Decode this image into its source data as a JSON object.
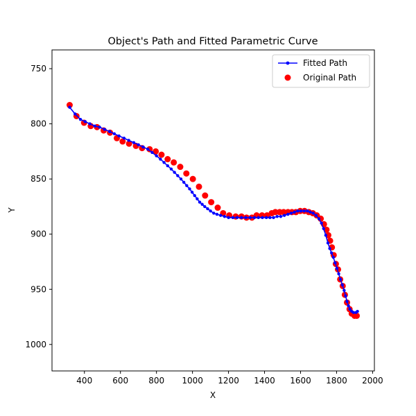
{
  "chart_data": {
    "type": "scatter",
    "title": "Object's Path and Fitted Parametric Curve",
    "xlabel": "X",
    "ylabel": "Y",
    "xlim": [
      220,
      2010
    ],
    "ylim": [
      1024,
      733
    ],
    "y_inverted": true,
    "grid": false,
    "legend_position": "top-right",
    "xticks": [
      400,
      600,
      800,
      1000,
      1200,
      1400,
      1600,
      1800,
      2000
    ],
    "yticks": [
      750,
      800,
      850,
      900,
      950,
      1000
    ],
    "series": [
      {
        "name": "Fitted Path",
        "kind": "line",
        "color": "#0000ff",
        "marker": "point",
        "points": [
          [
            318,
            785
          ],
          [
            348,
            791
          ],
          [
            378,
            796
          ],
          [
            404,
            798
          ],
          [
            430,
            800
          ],
          [
            458,
            802
          ],
          [
            484,
            803
          ],
          [
            512,
            805
          ],
          [
            540,
            807
          ],
          [
            566,
            809
          ],
          [
            592,
            811
          ],
          [
            620,
            813
          ],
          [
            646,
            815
          ],
          [
            674,
            817
          ],
          [
            700,
            819
          ],
          [
            726,
            821
          ],
          [
            752,
            823
          ],
          [
            776,
            826
          ],
          [
            800,
            829
          ],
          [
            822,
            832
          ],
          [
            842,
            835
          ],
          [
            862,
            838
          ],
          [
            882,
            841
          ],
          [
            900,
            844
          ],
          [
            918,
            847
          ],
          [
            936,
            850
          ],
          [
            952,
            853
          ],
          [
            968,
            856
          ],
          [
            984,
            859
          ],
          [
            998,
            862
          ],
          [
            1012,
            865
          ],
          [
            1026,
            868
          ],
          [
            1040,
            871
          ],
          [
            1054,
            873
          ],
          [
            1068,
            875
          ],
          [
            1084,
            877
          ],
          [
            1100,
            879
          ],
          [
            1118,
            881
          ],
          [
            1136,
            882
          ],
          [
            1156,
            883
          ],
          [
            1178,
            884
          ],
          [
            1200,
            885
          ],
          [
            1224,
            885
          ],
          [
            1248,
            885
          ],
          [
            1272,
            885
          ],
          [
            1296,
            885
          ],
          [
            1320,
            885
          ],
          [
            1344,
            885
          ],
          [
            1366,
            885
          ],
          [
            1388,
            885
          ],
          [
            1410,
            885
          ],
          [
            1430,
            885
          ],
          [
            1450,
            885
          ],
          [
            1470,
            884
          ],
          [
            1490,
            884
          ],
          [
            1510,
            883
          ],
          [
            1530,
            882
          ],
          [
            1548,
            881
          ],
          [
            1566,
            880
          ],
          [
            1584,
            879
          ],
          [
            1602,
            879
          ],
          [
            1620,
            879
          ],
          [
            1638,
            879
          ],
          [
            1654,
            880
          ],
          [
            1670,
            881
          ],
          [
            1686,
            883
          ],
          [
            1702,
            886
          ],
          [
            1716,
            890
          ],
          [
            1728,
            895
          ],
          [
            1740,
            901
          ],
          [
            1752,
            908
          ],
          [
            1762,
            913
          ],
          [
            1772,
            917
          ],
          [
            1782,
            921
          ],
          [
            1792,
            926
          ],
          [
            1802,
            931
          ],
          [
            1812,
            936
          ],
          [
            1822,
            941
          ],
          [
            1832,
            946
          ],
          [
            1842,
            951
          ],
          [
            1850,
            956
          ],
          [
            1858,
            961
          ],
          [
            1866,
            965
          ],
          [
            1874,
            968
          ],
          [
            1884,
            970
          ],
          [
            1894,
            971
          ],
          [
            1908,
            971
          ],
          [
            1916,
            970
          ]
        ]
      },
      {
        "name": "Original Path",
        "kind": "scatter",
        "color": "#ff0000",
        "marker": "circle",
        "points": [
          [
            318,
            783
          ],
          [
            356,
            793
          ],
          [
            398,
            799
          ],
          [
            435,
            802
          ],
          [
            470,
            803
          ],
          [
            507,
            806
          ],
          [
            542,
            808
          ],
          [
            580,
            813
          ],
          [
            612,
            816
          ],
          [
            648,
            818
          ],
          [
            686,
            820
          ],
          [
            720,
            822
          ],
          [
            762,
            823
          ],
          [
            796,
            825
          ],
          [
            828,
            828
          ],
          [
            862,
            832
          ],
          [
            896,
            835
          ],
          [
            932,
            839
          ],
          [
            966,
            845
          ],
          [
            1002,
            850
          ],
          [
            1036,
            857
          ],
          [
            1070,
            865
          ],
          [
            1104,
            871
          ],
          [
            1140,
            876
          ],
          [
            1170,
            881
          ],
          [
            1204,
            883
          ],
          [
            1240,
            884
          ],
          [
            1272,
            884
          ],
          [
            1300,
            885
          ],
          [
            1330,
            885
          ],
          [
            1356,
            883
          ],
          [
            1386,
            883
          ],
          [
            1414,
            883
          ],
          [
            1440,
            881
          ],
          [
            1460,
            880
          ],
          [
            1484,
            880
          ],
          [
            1506,
            880
          ],
          [
            1530,
            880
          ],
          [
            1552,
            880
          ],
          [
            1574,
            880
          ],
          [
            1598,
            879
          ],
          [
            1622,
            879
          ],
          [
            1646,
            880
          ],
          [
            1668,
            881
          ],
          [
            1690,
            883
          ],
          [
            1712,
            886
          ],
          [
            1730,
            891
          ],
          [
            1744,
            896
          ],
          [
            1754,
            901
          ],
          [
            1764,
            906
          ],
          [
            1774,
            912
          ],
          [
            1784,
            919
          ],
          [
            1796,
            927
          ],
          [
            1808,
            932
          ],
          [
            1820,
            941
          ],
          [
            1834,
            947
          ],
          [
            1846,
            955
          ],
          [
            1858,
            962
          ],
          [
            1872,
            968
          ],
          [
            1884,
            972
          ],
          [
            1900,
            974
          ],
          [
            1912,
            974
          ]
        ]
      }
    ]
  }
}
